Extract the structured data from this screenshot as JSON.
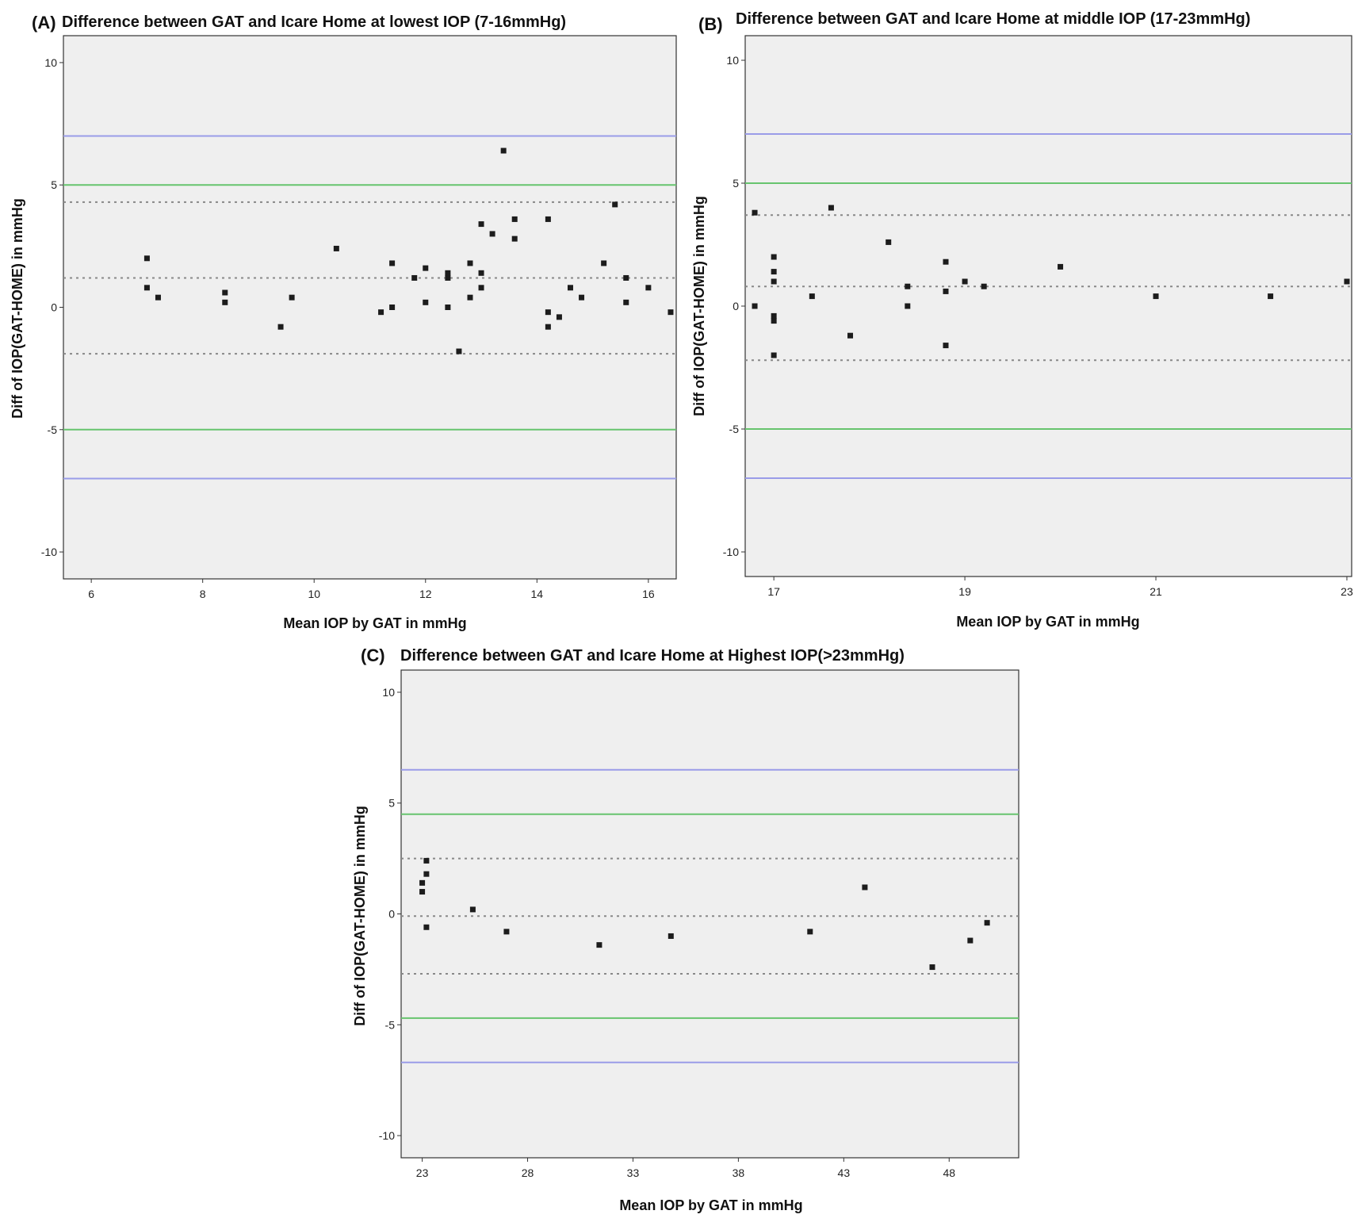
{
  "colors": {
    "plot_background": "#efefef",
    "axis": "#333333",
    "outer_limit_line": "#9a9ce8",
    "inner_limit_line": "#67c46e",
    "dotted_line": "#888888",
    "point": "#1c1c1c"
  },
  "chart_data": [
    {
      "type": "scatter",
      "panel": "(A)",
      "title": "Difference between GAT and Icare Home at lowest IOP (7-16mmHg)",
      "xlabel": "Mean IOP by GAT in mmHg",
      "ylabel": "Diff of IOP(GAT-HOME) in mmHg",
      "xlim": [
        5.5,
        16.5
      ],
      "ylim": [
        -11.1,
        11.1
      ],
      "xticks": [
        6,
        8,
        10,
        12,
        14,
        16
      ],
      "yticks": [
        10,
        5,
        0,
        -5,
        -10
      ],
      "grid": false,
      "reference_lines": [
        {
          "y": 7,
          "style": "outer"
        },
        {
          "y": 5,
          "style": "inner"
        },
        {
          "y": 4.3,
          "style": "dotted"
        },
        {
          "y": 1.2,
          "style": "dotted"
        },
        {
          "y": -1.9,
          "style": "dotted"
        },
        {
          "y": -5,
          "style": "inner"
        },
        {
          "y": -7,
          "style": "outer"
        }
      ],
      "points": [
        [
          7.0,
          2.0
        ],
        [
          7.0,
          0.8
        ],
        [
          7.2,
          0.4
        ],
        [
          8.4,
          0.6
        ],
        [
          8.4,
          0.2
        ],
        [
          9.4,
          -0.8
        ],
        [
          9.6,
          0.4
        ],
        [
          10.4,
          2.4
        ],
        [
          11.2,
          -0.2
        ],
        [
          11.4,
          1.8
        ],
        [
          11.4,
          0.0
        ],
        [
          11.8,
          1.2
        ],
        [
          12.0,
          1.6
        ],
        [
          12.0,
          0.2
        ],
        [
          12.4,
          1.4
        ],
        [
          12.4,
          1.2
        ],
        [
          12.4,
          0.0
        ],
        [
          12.6,
          -1.8
        ],
        [
          12.8,
          1.8
        ],
        [
          12.8,
          0.4
        ],
        [
          13.0,
          3.4
        ],
        [
          13.0,
          1.4
        ],
        [
          13.0,
          0.8
        ],
        [
          13.2,
          3.0
        ],
        [
          13.4,
          6.4
        ],
        [
          13.6,
          3.6
        ],
        [
          13.6,
          2.8
        ],
        [
          14.2,
          3.6
        ],
        [
          14.2,
          -0.2
        ],
        [
          14.2,
          -0.8
        ],
        [
          14.4,
          -0.4
        ],
        [
          14.6,
          0.8
        ],
        [
          14.8,
          0.4
        ],
        [
          15.2,
          1.8
        ],
        [
          15.4,
          4.2
        ],
        [
          15.6,
          1.2
        ],
        [
          15.6,
          0.2
        ],
        [
          16.0,
          0.8
        ],
        [
          16.4,
          -0.2
        ]
      ]
    },
    {
      "type": "scatter",
      "panel": "(B)",
      "title": "Difference between GAT and Icare Home at middle IOP (17-23mmHg)",
      "xlabel": "Mean IOP by GAT in mmHg",
      "ylabel": "Diff of IOP(GAT-HOME) in mmHg",
      "xlim": [
        16.7,
        23.05
      ],
      "ylim": [
        -11.0,
        11.0
      ],
      "xticks": [
        17,
        19,
        21,
        23
      ],
      "yticks": [
        10,
        5,
        0,
        -5,
        -10
      ],
      "grid": false,
      "reference_lines": [
        {
          "y": 7,
          "style": "outer"
        },
        {
          "y": 5,
          "style": "inner"
        },
        {
          "y": 3.7,
          "style": "dotted"
        },
        {
          "y": 0.8,
          "style": "dotted"
        },
        {
          "y": -2.2,
          "style": "dotted"
        },
        {
          "y": -5,
          "style": "inner"
        },
        {
          "y": -7,
          "style": "outer"
        }
      ],
      "points": [
        [
          16.8,
          3.8
        ],
        [
          16.8,
          0.0
        ],
        [
          17.0,
          2.0
        ],
        [
          17.0,
          1.4
        ],
        [
          17.0,
          1.0
        ],
        [
          17.0,
          -0.4
        ],
        [
          17.0,
          -0.6
        ],
        [
          17.0,
          -2.0
        ],
        [
          17.4,
          0.4
        ],
        [
          17.6,
          4.0
        ],
        [
          17.8,
          -1.2
        ],
        [
          18.2,
          2.6
        ],
        [
          18.4,
          0.8
        ],
        [
          18.4,
          0.0
        ],
        [
          18.8,
          1.8
        ],
        [
          18.8,
          0.6
        ],
        [
          18.8,
          -1.6
        ],
        [
          19.0,
          1.0
        ],
        [
          19.2,
          0.8
        ],
        [
          20.0,
          1.6
        ],
        [
          21.0,
          0.4
        ],
        [
          22.2,
          0.4
        ],
        [
          23.0,
          1.0
        ]
      ]
    },
    {
      "type": "scatter",
      "panel": "(C)",
      "title": "Difference between GAT and Icare Home at Highest IOP(>23mmHg)",
      "xlabel": "Mean IOP by GAT in mmHg",
      "ylabel": "Diff of IOP(GAT-HOME) in mmHg",
      "xlim": [
        22.0,
        51.3
      ],
      "ylim": [
        -11.0,
        11.0
      ],
      "xticks": [
        23,
        28,
        33,
        38,
        43,
        48
      ],
      "yticks": [
        10,
        5,
        0,
        -5,
        -10
      ],
      "grid": false,
      "reference_lines": [
        {
          "y": 6.5,
          "style": "outer"
        },
        {
          "y": 4.5,
          "style": "inner"
        },
        {
          "y": 2.5,
          "style": "dotted"
        },
        {
          "y": -0.1,
          "style": "dotted"
        },
        {
          "y": -2.7,
          "style": "dotted"
        },
        {
          "y": -4.7,
          "style": "inner"
        },
        {
          "y": -6.7,
          "style": "outer"
        }
      ],
      "points": [
        [
          23.2,
          2.4
        ],
        [
          23.2,
          1.8
        ],
        [
          23.0,
          1.4
        ],
        [
          23.0,
          1.0
        ],
        [
          23.2,
          -0.6
        ],
        [
          25.4,
          0.2
        ],
        [
          27.0,
          -0.8
        ],
        [
          31.4,
          -1.4
        ],
        [
          34.8,
          -1.0
        ],
        [
          41.4,
          -0.8
        ],
        [
          44.0,
          1.2
        ],
        [
          47.2,
          -2.4
        ],
        [
          49.0,
          -1.2
        ],
        [
          49.8,
          -0.4
        ]
      ]
    }
  ]
}
